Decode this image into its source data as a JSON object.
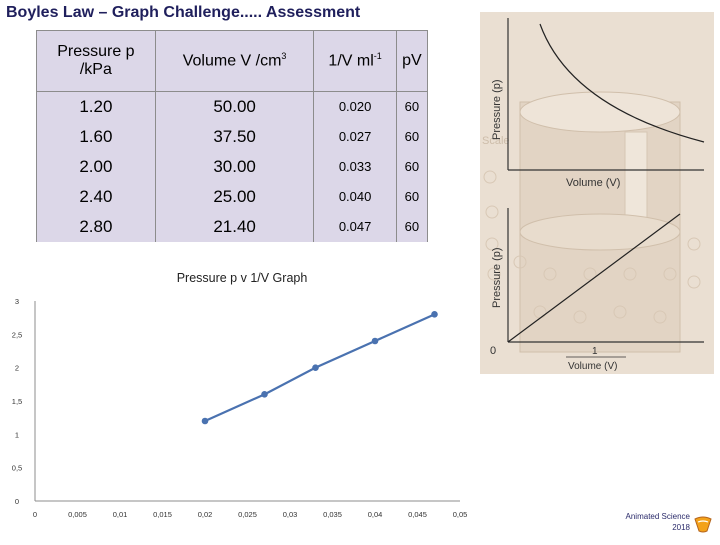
{
  "title": "Boyles Law – Graph Challenge..... Assessment",
  "table": {
    "headers": [
      {
        "line1": "Pressure  p",
        "line2": "/kPa"
      },
      {
        "text": "Volume V /cm",
        "sup": "3"
      },
      {
        "text": "1/V  ml",
        "sup": "-1"
      },
      {
        "text": "pV"
      }
    ],
    "rows": [
      [
        "1.20",
        "50.00",
        "0.020",
        "60"
      ],
      [
        "1.60",
        "37.50",
        "0.027",
        "60"
      ],
      [
        "2.00",
        "30.00",
        "0.033",
        "60"
      ],
      [
        "2.40",
        "25.00",
        "0.040",
        "60"
      ],
      [
        "2.80",
        "21.40",
        "0.047",
        "60"
      ]
    ]
  },
  "side_graphs": {
    "top_ylabel": "Pressure (p)",
    "top_xlabel": "Volume (V)",
    "bottom_ylabel": "Pressure (p)",
    "bottom_origin": "0",
    "bottom_x_numerator": "1",
    "bottom_x_denominator": "Volume (V)",
    "watermark": "Scale"
  },
  "chart_data": {
    "type": "line",
    "title": "Pressure  p v 1/V Graph",
    "xlabel": "",
    "ylabel": "",
    "xlim": [
      0,
      0.05
    ],
    "ylim": [
      0,
      3
    ],
    "x_ticks": [
      "0",
      "0,005",
      "0,01",
      "0,015",
      "0,02",
      "0,025",
      "0,03",
      "0,035",
      "0,04",
      "0,045",
      "0,05"
    ],
    "y_ticks": [
      "0",
      "0,5",
      "1",
      "1,5",
      "2",
      "2,5",
      "3"
    ],
    "grid": false,
    "series": [
      {
        "x": [
          0.02,
          0.027,
          0.033,
          0.04,
          0.047
        ],
        "y": [
          1.2,
          1.6,
          2.0,
          2.4,
          2.8
        ],
        "color": "#4a72b0"
      }
    ]
  },
  "footer": {
    "line1": "Animated Science",
    "line2": "2018"
  },
  "colors": {
    "title": "#1f1f5c",
    "table_fill": "#dcd7e8",
    "series": "#4a72b0",
    "axis": "#8c8c8c"
  }
}
